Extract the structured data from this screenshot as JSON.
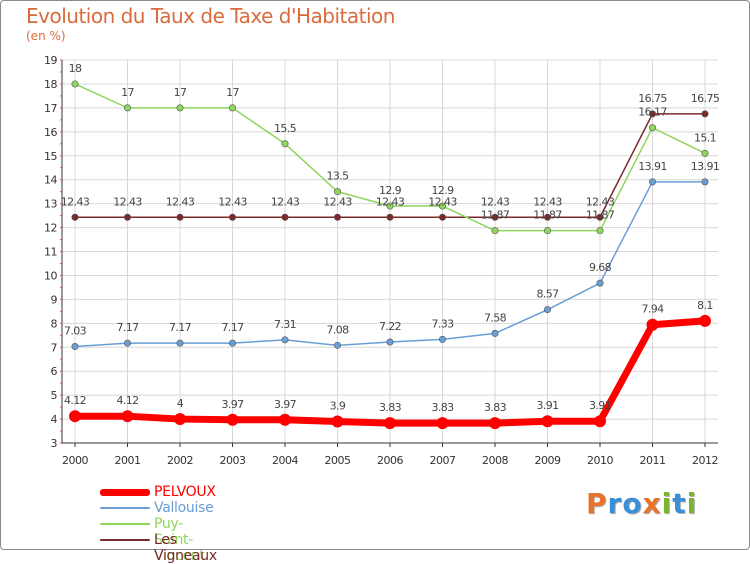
{
  "header": {
    "title": "Evolution du Taux de Taxe d'Habitation",
    "subtitle": "(en %)"
  },
  "chart_data": {
    "type": "line",
    "title": "Evolution du Taux de Taxe d'Habitation",
    "ylabel": "(en %)",
    "xlabel": "",
    "x": [
      "2000",
      "2001",
      "2002",
      "2003",
      "2004",
      "2005",
      "2006",
      "2007",
      "2008",
      "2009",
      "2010",
      "2011",
      "2012"
    ],
    "ylim": [
      3,
      19
    ],
    "yticks": [
      "3",
      "4",
      "5",
      "6",
      "7",
      "8",
      "9",
      "10",
      "11",
      "12",
      "13",
      "14",
      "15",
      "16",
      "17",
      "18",
      "19"
    ],
    "grid": true,
    "legend_position": "bottom-left",
    "series": [
      {
        "name": "PELVOUX",
        "color": "#ff0000",
        "values": [
          4.12,
          4.12,
          4,
          3.97,
          3.97,
          3.9,
          3.83,
          3.83,
          3.83,
          3.91,
          3.91,
          7.94,
          8.1
        ],
        "labels": [
          "4.12",
          "4.12",
          "4",
          "3.97",
          "3.97",
          "3.9",
          "3.83",
          "3.83",
          "3.83",
          "3.91",
          "3.91",
          "7.94",
          "8.1"
        ]
      },
      {
        "name": "Vallouise",
        "color": "#6a9fd6",
        "values": [
          7.03,
          7.17,
          7.17,
          7.17,
          7.31,
          7.08,
          7.22,
          7.33,
          7.58,
          8.57,
          9.68,
          13.91,
          13.91
        ],
        "labels": [
          "7.03",
          "7.17",
          "7.17",
          "7.17",
          "7.31",
          "7.08",
          "7.22",
          "7.33",
          "7.58",
          "8.57",
          "9.68",
          "13.91",
          "13.91"
        ]
      },
      {
        "name": "Puy-Saint-Vincent",
        "color": "#8ed65c",
        "values": [
          18,
          17,
          17,
          17,
          15.5,
          13.5,
          12.9,
          12.9,
          11.87,
          11.87,
          11.87,
          16.17,
          15.1
        ],
        "labels": [
          "18",
          "17",
          "17",
          "17",
          "15.5",
          "13.5",
          "12.9",
          "12.9",
          "11.87",
          "11.87",
          "11.87",
          "16.17",
          "15.1"
        ]
      },
      {
        "name": "Les Vigneaux",
        "color": "#7a2a2a",
        "values": [
          12.43,
          12.43,
          12.43,
          12.43,
          12.43,
          12.43,
          12.43,
          12.43,
          12.43,
          12.43,
          12.43,
          16.75,
          16.75
        ],
        "labels": [
          "12.43",
          "12.43",
          "12.43",
          "12.43",
          "12.43",
          "12.43",
          "12.43",
          "12.43",
          "12.43",
          "12.43",
          "12.43",
          "16.75",
          "16.75"
        ]
      }
    ]
  },
  "legend": {
    "items": [
      {
        "label": "PELVOUX",
        "color": "#ff0000"
      },
      {
        "label": "Vallouise",
        "color": "#6a9fd6"
      },
      {
        "label": "Puy-Saint-Vincent",
        "color": "#8ed65c"
      },
      {
        "label": "Les Vigneaux",
        "color": "#7a2a2a"
      }
    ]
  },
  "logo": {
    "letters": [
      "P",
      "r",
      "o",
      "x",
      "i",
      "t",
      "i"
    ],
    "colors": [
      "#e8732c",
      "#3a8fd8",
      "#3a8fd8",
      "#e8732c",
      "#79b52f",
      "#3a8fd8",
      "#79b52f"
    ]
  },
  "colors": {
    "title": "#d96b3c",
    "axis": "#333333",
    "grid": "#d8d8d8",
    "tick_label": "#333333",
    "value_label": "#444444"
  }
}
